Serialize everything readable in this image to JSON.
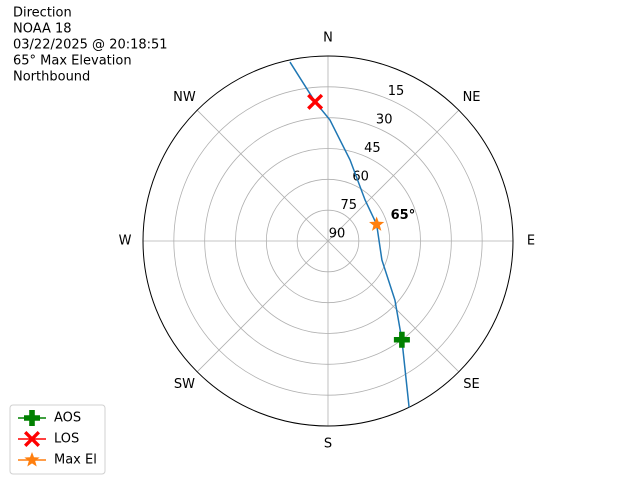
{
  "chart_data": {
    "type": "polar",
    "title_lines": [
      "Direction",
      "NOAA 18",
      "03/22/2025 @ 20:18:51",
      "65° Max Elevation",
      "Northbound"
    ],
    "theta_direction": "clockwise",
    "theta_zero": "N",
    "ylim": [
      90,
      0
    ],
    "yticks": [
      90,
      75,
      60,
      45,
      30,
      15
    ],
    "xticks": [
      {
        "value": 0,
        "label": "N"
      },
      {
        "value": 45,
        "label": "NE"
      },
      {
        "value": 90,
        "label": "E"
      },
      {
        "value": 135,
        "label": "SE"
      },
      {
        "value": 180,
        "label": "S"
      },
      {
        "value": 225,
        "label": "SW"
      },
      {
        "value": 270,
        "label": "W"
      },
      {
        "value": 315,
        "label": "NW"
      }
    ],
    "grid": true,
    "legend": "lower left",
    "series": [
      {
        "kind": "line",
        "color": "#1f77b4",
        "x": [
          154,
          143.2,
          131.4,
          109.4,
          71.2,
          42.1,
          15.2,
          0.9,
          354.7,
          348
        ],
        "values": [
          0,
          30,
          46.6,
          62.2,
          65,
          63.1,
          49.1,
          31.1,
          22,
          1
        ]
      },
      {
        "kind": "marker",
        "name": "AOS",
        "marker": "plus",
        "color": "#008000",
        "x": [
          143.2
        ],
        "values": [
          30
        ]
      },
      {
        "kind": "marker",
        "name": "LOS",
        "marker": "x",
        "color": "#ff0000",
        "x": [
          354.7
        ],
        "values": [
          22
        ]
      },
      {
        "kind": "marker",
        "name": "Max El",
        "marker": "star",
        "color": "#ff7f0e",
        "x": [
          71.2
        ],
        "values": [
          65
        ]
      }
    ],
    "annotations": [
      {
        "text": "65°",
        "x": 71.2,
        "y": 65
      }
    ]
  }
}
